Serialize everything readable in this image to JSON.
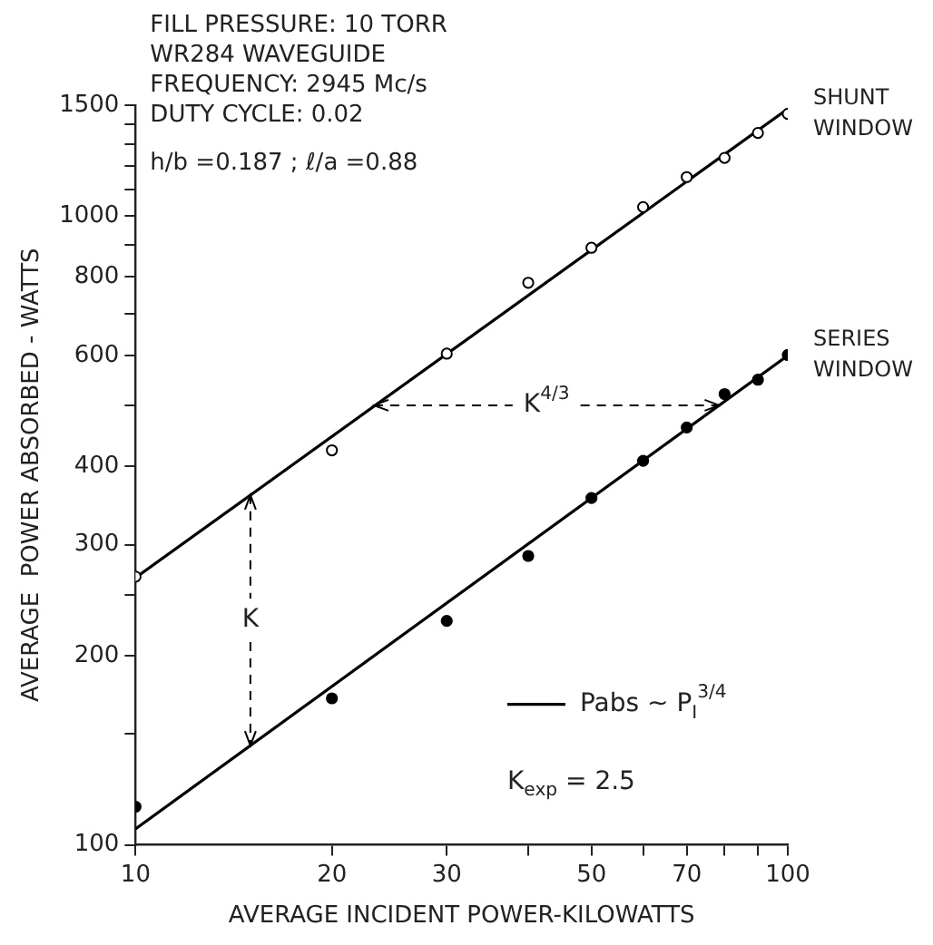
{
  "chart_data": {
    "type": "scatter",
    "xlabel": "AVERAGE INCIDENT POWER-KILOWATTS",
    "ylabel": "AVERAGE  POWER ABSORBED - WATTS",
    "log": "xy",
    "grid": false,
    "legend": "bottom right",
    "xlim": [
      10,
      100
    ],
    "ylim": [
      100,
      1500
    ],
    "xticks": [
      10,
      20,
      30,
      {
        "value": 40,
        "label": null
      },
      50,
      {
        "value": 60,
        "label": null
      },
      70,
      {
        "value": 80,
        "label": null
      },
      {
        "value": 90,
        "label": null
      },
      100
    ],
    "yticks": [
      100,
      {
        "value": 150,
        "label": null
      },
      200,
      {
        "value": 250,
        "label": null
      },
      300,
      400,
      {
        "value": 500,
        "label": null
      },
      600,
      {
        "value": 700,
        "label": null
      },
      800,
      {
        "value": 900,
        "label": null
      },
      1000,
      {
        "value": 1100,
        "label": null
      },
      {
        "value": 1200,
        "label": null
      },
      {
        "value": 1300,
        "label": null
      },
      {
        "value": 1400,
        "label": null
      },
      1500
    ],
    "series": [
      {
        "name": "SHUNT WINDOW",
        "type": "scatter",
        "marker": "circle",
        "color": "#ffffff",
        "x": [
          10,
          20,
          30,
          40,
          50,
          60,
          70,
          80,
          90,
          100
        ],
        "values": [
          267,
          424,
          604,
          783,
          890,
          1033,
          1153,
          1237,
          1355,
          1453
        ]
      },
      {
        "name": "SERIES WINDOW",
        "type": "scatter",
        "marker": "circle",
        "color": "#000000",
        "x": [
          10,
          20,
          30,
          40,
          50,
          60,
          70,
          80,
          90,
          100
        ],
        "values": [
          115,
          171,
          227,
          288,
          356,
          408,
          461,
          521,
          549,
          601
        ]
      },
      {
        "name": "Pabs ∼ P$_{I}$$^{3/4}$",
        "type": "line",
        "marker": "none",
        "color": "#000000",
        "x": [
          10,
          100
        ],
        "values": [
          266,
          1480
        ]
      },
      {
        "type": "line",
        "marker": "none",
        "color": "#000000",
        "x": [
          10,
          100
        ],
        "values": [
          106,
          600
        ]
      }
    ],
    "annotations": [
      "FILL PRESSURE: 10 TORR",
      "WR284 WAVEGUIDE",
      "FREQUENCY: 2945 Mc/s",
      "DUTY CYCLE: 0.02",
      "h/b =0.187 ; ℓ/a =0.88",
      {
        "text": "K$^{4/3}$",
        "x": 23.2,
        "y": 500
      },
      {
        "text": "K",
        "x": 15,
        "y": 360
      },
      "K$_{exp}$ = 2.5"
    ]
  }
}
